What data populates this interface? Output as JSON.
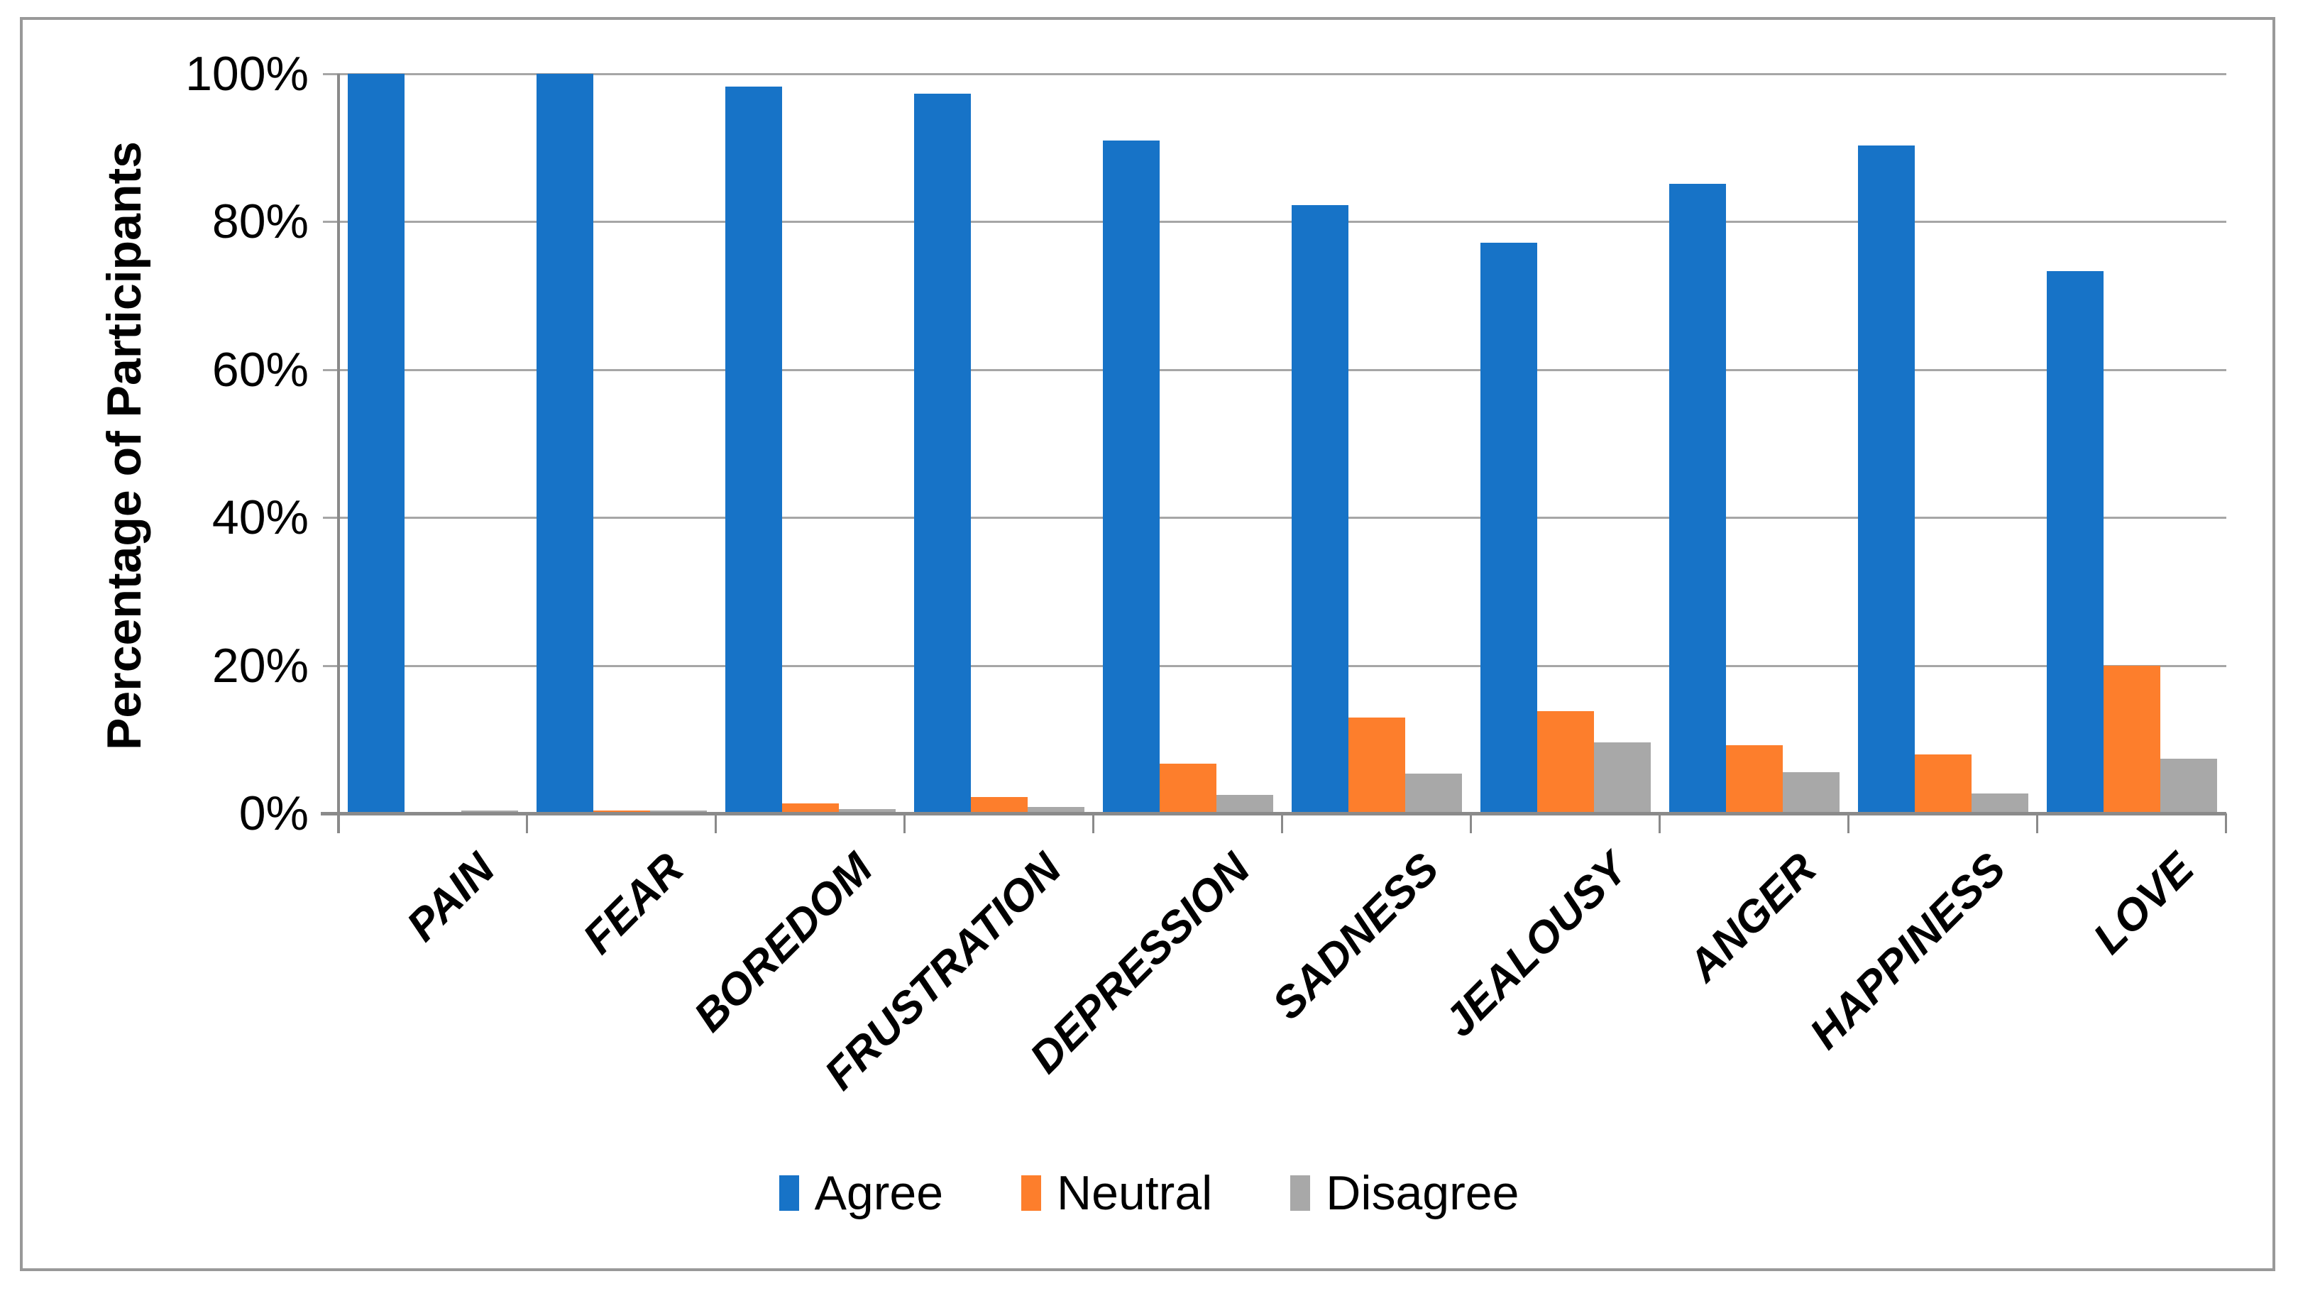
{
  "figure": {
    "background_color": "#FFFFFF",
    "border_color": "#999999"
  },
  "chart_data": {
    "type": "bar",
    "title": "",
    "xlabel": "",
    "ylabel": "Percentage of Participants",
    "ylim": [
      0,
      100
    ],
    "grid": true,
    "gridline_color": "#A6A6A6",
    "axis_color": "#8A8A8A",
    "legend_position": "bottom",
    "y_ticks": [
      {
        "label": "0%",
        "value": 0
      },
      {
        "label": "20%",
        "value": 20
      },
      {
        "label": "40%",
        "value": 40
      },
      {
        "label": "60%",
        "value": 60
      },
      {
        "label": "80%",
        "value": 80
      },
      {
        "label": "100%",
        "value": 100
      }
    ],
    "categories": [
      "PAIN",
      "FEAR",
      "BOREDOM",
      "FRUSTRATION",
      "DEPRESSION",
      "SADNESS",
      "JEALOUSY",
      "ANGER",
      "HAPPINESS",
      "LOVE"
    ],
    "series": [
      {
        "name": "Agree",
        "color": "#1773C7",
        "values": [
          100,
          100,
          98.3,
          97.3,
          91,
          82.2,
          77.2,
          85.1,
          90.3,
          73.3
        ]
      },
      {
        "name": "Neutral",
        "color": "#FD7E2C",
        "values": [
          0,
          0.4,
          1.3,
          2.2,
          6.7,
          13,
          13.8,
          9.2,
          8,
          20
        ]
      },
      {
        "name": "Disagree",
        "color": "#A8A8A8",
        "values": [
          0.4,
          0.4,
          0.6,
          0.9,
          2.5,
          5.4,
          9.6,
          5.6,
          2.7,
          7.4
        ]
      }
    ]
  }
}
